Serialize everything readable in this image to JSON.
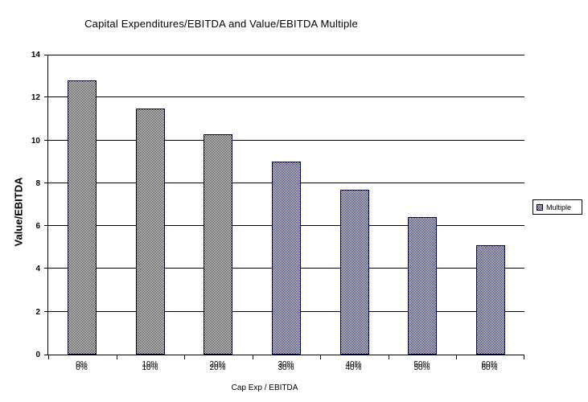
{
  "chart_data": {
    "type": "bar",
    "title": "Capital Expenditures/EBITDA and Value/EBITDA Multiple",
    "categories": [
      "0%",
      "10%",
      "20%",
      "30%",
      "40%",
      "50%",
      "60%"
    ],
    "series": [
      {
        "name": "Multiple",
        "values": [
          12.8,
          11.5,
          10.3,
          9.0,
          7.7,
          6.4,
          5.1
        ]
      }
    ],
    "xlabel": "Cap Exp / EBITDA",
    "ylabel": "Value/EBITDA",
    "ylim": [
      0,
      14
    ],
    "yticks": [
      0,
      2,
      4,
      6,
      8,
      10,
      12,
      14
    ],
    "grid": true,
    "legend_position": "right",
    "colors": {
      "bar_pattern": "#26267e",
      "bar_background": "#ffffff",
      "bar_border": "#000030",
      "axis": "#000000",
      "background": "#ffffff"
    }
  }
}
